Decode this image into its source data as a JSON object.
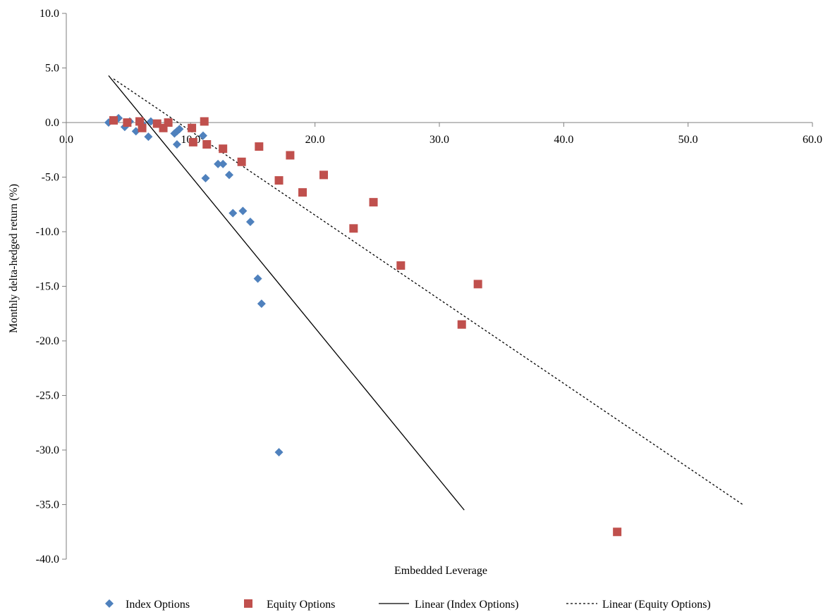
{
  "chart_data": {
    "type": "scatter",
    "title": "",
    "xlabel": "Embedded Leverage",
    "ylabel": "Monthly delta-hedged return (%)",
    "xlim": [
      0,
      60
    ],
    "ylim": [
      -40,
      10
    ],
    "x_ticks": [
      "0.0",
      "10.0",
      "20.0",
      "30.0",
      "40.0",
      "50.0",
      "60.0"
    ],
    "y_ticks": [
      "10.0",
      "5.0",
      "0.0",
      "-5.0",
      "-10.0",
      "-15.0",
      "-20.0",
      "-25.0",
      "-30.0",
      "-35.0",
      "-40.0"
    ],
    "grid": false,
    "legend_position": "bottom",
    "series": [
      {
        "name": "Index Options",
        "marker": "diamond",
        "color": "#4F81BD",
        "points": [
          [
            3.4,
            0.0
          ],
          [
            4.2,
            0.4
          ],
          [
            4.7,
            -0.4
          ],
          [
            5.1,
            0.1
          ],
          [
            5.6,
            -0.8
          ],
          [
            6.1,
            -0.1
          ],
          [
            6.6,
            -1.3
          ],
          [
            6.8,
            0.1
          ],
          [
            8.7,
            -1.0
          ],
          [
            8.9,
            -0.8
          ],
          [
            9.1,
            -0.6
          ],
          [
            8.9,
            -2.0
          ],
          [
            11.0,
            -1.2
          ],
          [
            12.2,
            -3.8
          ],
          [
            12.6,
            -3.8
          ],
          [
            11.2,
            -5.1
          ],
          [
            13.1,
            -4.8
          ],
          [
            13.4,
            -8.3
          ],
          [
            14.2,
            -8.1
          ],
          [
            14.8,
            -9.1
          ],
          [
            15.4,
            -14.3
          ],
          [
            15.7,
            -16.6
          ],
          [
            17.1,
            -30.2
          ]
        ]
      },
      {
        "name": "Equity Options",
        "marker": "square",
        "color": "#C0504D",
        "points": [
          [
            3.8,
            0.2
          ],
          [
            4.9,
            0.0
          ],
          [
            5.9,
            0.1
          ],
          [
            6.1,
            -0.5
          ],
          [
            7.3,
            -0.1
          ],
          [
            7.8,
            -0.5
          ],
          [
            8.2,
            0.0
          ],
          [
            10.1,
            -0.5
          ],
          [
            10.2,
            -1.8
          ],
          [
            11.1,
            0.1
          ],
          [
            11.3,
            -2.0
          ],
          [
            12.6,
            -2.4
          ],
          [
            14.1,
            -3.6
          ],
          [
            15.5,
            -2.2
          ],
          [
            17.1,
            -5.3
          ],
          [
            18.0,
            -3.0
          ],
          [
            19.0,
            -6.4
          ],
          [
            20.7,
            -4.8
          ],
          [
            23.1,
            -9.7
          ],
          [
            24.7,
            -7.3
          ],
          [
            26.9,
            -13.1
          ],
          [
            31.8,
            -18.5
          ],
          [
            33.1,
            -14.8
          ],
          [
            44.3,
            -37.5
          ]
        ]
      }
    ],
    "trendlines": [
      {
        "name": "Linear (Index Options)",
        "style": "solid",
        "color": "#000000",
        "from": [
          3.4,
          4.3
        ],
        "to": [
          32.0,
          -35.5
        ]
      },
      {
        "name": "Linear (Equity Options)",
        "style": "dashed",
        "color": "#000000",
        "from": [
          3.8,
          4.0
        ],
        "to": [
          54.4,
          -35.0
        ]
      }
    ]
  }
}
